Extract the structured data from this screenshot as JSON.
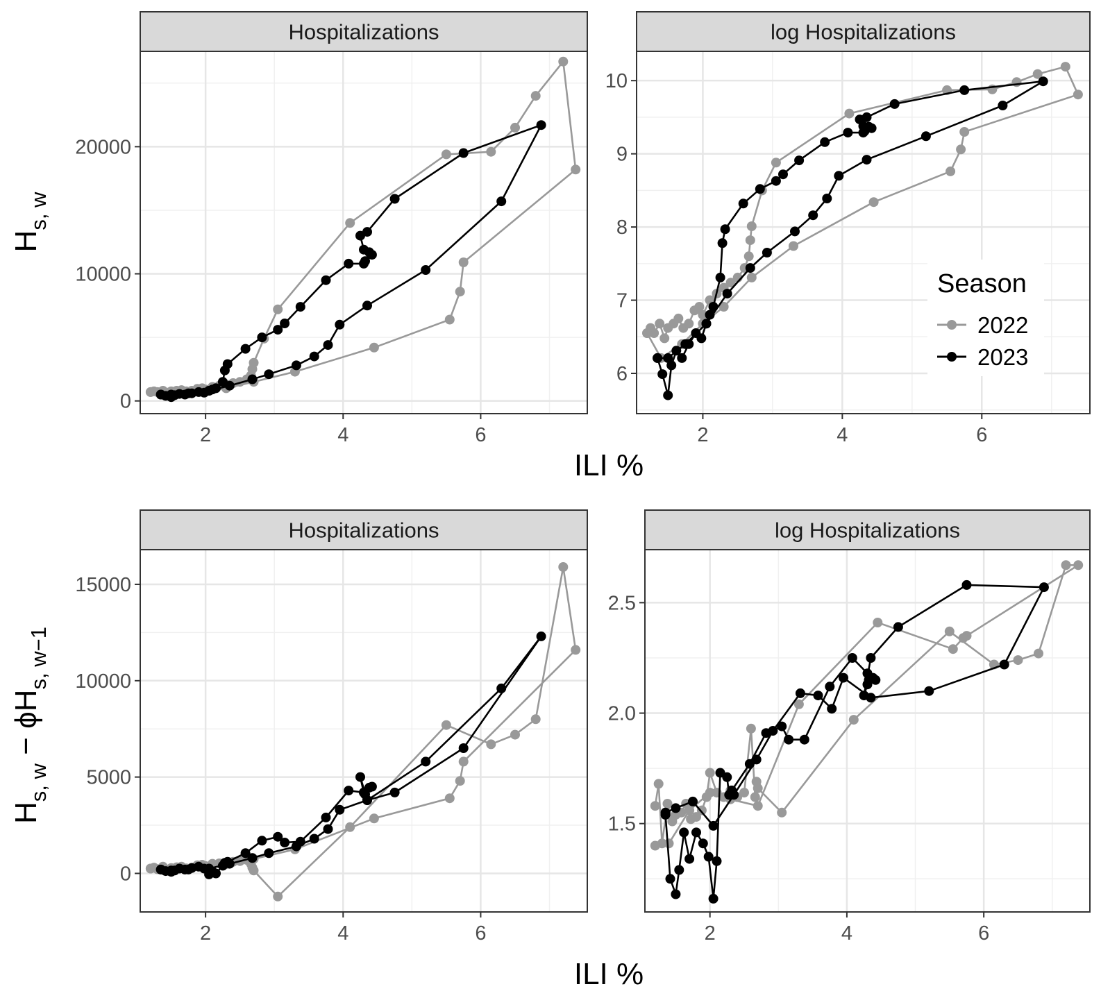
{
  "figure": {
    "x_axis_title": "ILI %",
    "top_y_axis_title": {
      "main": "H",
      "sub": "s, w"
    },
    "bottom_y_axis_title": {
      "main1": "H",
      "sub1": "s, w",
      "middle": " − ϕH",
      "sub2": "s, w−1"
    }
  },
  "legend": {
    "title": "Season",
    "entries": [
      {
        "label": "2022",
        "color": "#999999"
      },
      {
        "label": "2023",
        "color": "#000000"
      }
    ]
  },
  "chart_data": [
    {
      "type": "line",
      "panel_label": "Hospitalizations",
      "xlim": [
        1.05,
        7.55
      ],
      "ylim": [
        -1000,
        27500
      ],
      "x_ticks": [
        2,
        4,
        6
      ],
      "y_ticks": [
        0,
        10000,
        20000
      ],
      "y_tick_labels": [
        "0",
        "10000",
        "20000"
      ],
      "series": [
        {
          "name": "2022",
          "color": "#999999",
          "x": [
            1.2,
            1.25,
            1.3,
            1.38,
            1.45,
            1.5,
            1.58,
            1.65,
            1.72,
            1.8,
            1.88,
            1.95,
            2.0,
            2.1,
            2.2,
            2.3,
            2.4,
            2.5,
            2.6,
            2.66,
            2.68,
            2.7,
            2.85,
            3.05,
            4.1,
            5.5,
            6.15,
            6.5,
            6.8,
            7.2,
            7.38,
            5.75,
            5.7,
            5.55,
            4.45,
            3.3,
            2.7,
            2.3,
            2.0,
            1.7,
            1.4,
            1.2
          ],
          "y": [
            700,
            750,
            700,
            800,
            650,
            750,
            800,
            850,
            750,
            800,
            950,
            1000,
            900,
            1100,
            1200,
            1300,
            1400,
            1500,
            1700,
            2000,
            2500,
            3000,
            4900,
            7200,
            14000,
            19400,
            19600,
            21500,
            24000,
            26700,
            18200,
            10900,
            8600,
            6400,
            4200,
            2300,
            1500,
            1000,
            800,
            600,
            500,
            700
          ]
        },
        {
          "name": "2023",
          "color": "#000000",
          "x": [
            1.35,
            1.42,
            1.5,
            1.55,
            1.62,
            1.7,
            1.8,
            1.9,
            1.98,
            2.05,
            2.1,
            2.15,
            2.25,
            2.28,
            2.32,
            2.58,
            2.82,
            3.05,
            3.15,
            3.38,
            3.75,
            4.08,
            4.3,
            4.32,
            4.38,
            4.42,
            4.3,
            4.25,
            4.35,
            4.75,
            5.75,
            6.88,
            6.3,
            5.2,
            4.35,
            3.95,
            3.78,
            3.58,
            3.32,
            2.92,
            2.68,
            2.35,
            2.05,
            1.75,
            1.5,
            1.35
          ],
          "y": [
            500,
            400,
            300,
            450,
            550,
            500,
            600,
            700,
            650,
            800,
            900,
            1000,
            1500,
            2400,
            2900,
            4100,
            5000,
            5600,
            6100,
            7400,
            9500,
            10800,
            10800,
            11000,
            11700,
            11500,
            11900,
            13000,
            13300,
            15900,
            19500,
            21700,
            15700,
            10300,
            7500,
            6000,
            4400,
            3500,
            2800,
            2100,
            1700,
            1200,
            800,
            600,
            500,
            500
          ]
        }
      ]
    },
    {
      "type": "line",
      "panel_label": "log Hospitalizations",
      "xlim": [
        1.05,
        7.55
      ],
      "ylim": [
        5.45,
        10.4
      ],
      "x_ticks": [
        2,
        4,
        6
      ],
      "y_ticks": [
        6,
        7,
        8,
        9,
        10
      ],
      "y_tick_labels": [
        "6",
        "7",
        "8",
        "9",
        "10"
      ],
      "series": [
        {
          "name": "2022",
          "color": "#999999",
          "x": [
            1.2,
            1.25,
            1.3,
            1.38,
            1.45,
            1.5,
            1.58,
            1.65,
            1.72,
            1.8,
            1.88,
            1.95,
            2.0,
            2.1,
            2.2,
            2.3,
            2.4,
            2.5,
            2.6,
            2.66,
            2.68,
            2.7,
            2.85,
            3.05,
            4.1,
            5.5,
            6.15,
            6.5,
            6.8,
            7.2,
            7.38,
            5.75,
            5.7,
            5.55,
            4.45,
            3.3,
            2.7,
            2.3,
            2.0,
            1.7,
            1.4,
            1.2
          ],
          "y": [
            6.55,
            6.62,
            6.55,
            6.68,
            6.48,
            6.62,
            6.68,
            6.75,
            6.62,
            6.68,
            6.86,
            6.91,
            6.8,
            7.0,
            7.09,
            7.17,
            7.24,
            7.31,
            7.44,
            7.6,
            7.82,
            8.01,
            8.5,
            8.88,
            9.55,
            9.87,
            9.88,
            9.98,
            10.09,
            10.19,
            9.81,
            9.3,
            9.06,
            8.76,
            8.34,
            7.74,
            7.31,
            6.91,
            6.68,
            6.4,
            6.21,
            6.55
          ]
        },
        {
          "name": "2023",
          "color": "#000000",
          "x": [
            1.35,
            1.42,
            1.5,
            1.55,
            1.62,
            1.7,
            1.8,
            1.9,
            1.98,
            2.05,
            2.1,
            2.15,
            2.25,
            2.28,
            2.32,
            2.58,
            2.82,
            3.05,
            3.15,
            3.38,
            3.75,
            4.08,
            4.3,
            4.32,
            4.38,
            4.42,
            4.3,
            4.25,
            4.35,
            4.75,
            5.75,
            6.88,
            6.3,
            5.2,
            4.35,
            3.95,
            3.78,
            3.58,
            3.32,
            2.92,
            2.68,
            2.35,
            2.05,
            1.75,
            1.5,
            1.35
          ],
          "y": [
            6.21,
            5.99,
            5.7,
            6.11,
            6.31,
            6.21,
            6.4,
            6.55,
            6.48,
            6.68,
            6.8,
            6.91,
            7.31,
            7.78,
            7.97,
            8.32,
            8.52,
            8.63,
            8.72,
            8.91,
            9.16,
            9.29,
            9.29,
            9.31,
            9.37,
            9.35,
            9.38,
            9.47,
            9.5,
            9.68,
            9.87,
            9.99,
            9.66,
            9.24,
            8.92,
            8.7,
            8.39,
            8.16,
            7.94,
            7.65,
            7.44,
            7.09,
            6.68,
            6.4,
            6.21,
            6.21
          ]
        }
      ]
    },
    {
      "type": "line",
      "panel_label": "Hospitalizations",
      "xlim": [
        1.05,
        7.55
      ],
      "ylim": [
        -2000,
        16800
      ],
      "x_ticks": [
        2,
        4,
        6
      ],
      "y_ticks": [
        0,
        5000,
        10000,
        15000
      ],
      "y_tick_labels": [
        "0",
        "5000",
        "10000",
        "15000"
      ],
      "series": [
        {
          "name": "2022",
          "color": "#999999",
          "x": [
            1.2,
            1.25,
            1.3,
            1.38,
            1.45,
            1.5,
            1.58,
            1.65,
            1.72,
            1.8,
            1.88,
            1.95,
            2.0,
            2.1,
            2.2,
            2.3,
            2.4,
            2.5,
            2.6,
            2.66,
            2.68,
            2.7,
            3.05,
            4.1,
            5.5,
            6.15,
            6.5,
            6.8,
            7.2,
            7.38,
            5.75,
            5.7,
            5.55,
            4.45,
            3.3,
            2.7,
            2.3,
            2.0,
            1.7,
            1.4,
            1.2
          ],
          "y": [
            250,
            300,
            220,
            350,
            180,
            280,
            320,
            350,
            260,
            300,
            420,
            450,
            380,
            500,
            520,
            560,
            600,
            640,
            700,
            500,
            300,
            150,
            -1200,
            2400,
            7700,
            6700,
            7200,
            8000,
            15900,
            11600,
            5800,
            4800,
            3900,
            2850,
            1250,
            750,
            480,
            300,
            200,
            150,
            250
          ]
        },
        {
          "name": "2023",
          "color": "#000000",
          "x": [
            1.35,
            1.42,
            1.5,
            1.55,
            1.62,
            1.7,
            1.8,
            1.9,
            1.98,
            2.05,
            2.1,
            2.15,
            2.25,
            2.28,
            2.32,
            2.58,
            2.82,
            3.05,
            3.15,
            3.38,
            3.75,
            4.08,
            4.3,
            4.32,
            4.38,
            4.42,
            4.3,
            4.25,
            4.35,
            4.75,
            5.75,
            6.88,
            6.3,
            5.2,
            4.35,
            3.95,
            3.78,
            3.58,
            3.32,
            2.92,
            2.68,
            2.35,
            2.05,
            1.75,
            1.5,
            1.35
          ],
          "y": [
            200,
            120,
            80,
            150,
            250,
            200,
            280,
            350,
            250,
            -50,
            100,
            0,
            400,
            550,
            600,
            1050,
            1700,
            1900,
            1600,
            1650,
            2900,
            4300,
            4200,
            4100,
            4450,
            4500,
            4200,
            5000,
            3800,
            4200,
            6500,
            12300,
            9600,
            5800,
            3800,
            3300,
            2300,
            1800,
            1400,
            1050,
            800,
            500,
            250,
            200,
            150,
            200
          ]
        }
      ]
    },
    {
      "type": "line",
      "panel_label": "log Hospitalizations",
      "xlim": [
        1.05,
        7.55
      ],
      "ylim": [
        1.1,
        2.74
      ],
      "x_ticks": [
        2,
        4,
        6
      ],
      "y_ticks": [
        1.5,
        2.0,
        2.5
      ],
      "y_tick_labels": [
        "1.5",
        "2.0",
        "2.5"
      ],
      "series": [
        {
          "name": "2022",
          "color": "#999999",
          "x": [
            1.2,
            1.25,
            1.3,
            1.38,
            1.45,
            1.5,
            1.58,
            1.65,
            1.72,
            1.8,
            1.88,
            1.95,
            2.0,
            2.1,
            2.2,
            2.3,
            2.4,
            2.5,
            2.6,
            2.66,
            2.68,
            2.7,
            3.05,
            4.1,
            5.5,
            6.15,
            6.5,
            6.8,
            7.2,
            7.38,
            5.75,
            5.7,
            5.55,
            4.45,
            3.3,
            2.7,
            2.3,
            2.0,
            1.7,
            1.4,
            1.2
          ],
          "y": [
            1.58,
            1.68,
            1.41,
            1.59,
            1.51,
            1.54,
            1.55,
            1.59,
            1.52,
            1.53,
            1.56,
            1.62,
            1.73,
            1.64,
            1.62,
            1.65,
            1.62,
            1.64,
            1.93,
            1.62,
            1.69,
            1.66,
            1.55,
            1.97,
            2.37,
            2.22,
            2.24,
            2.27,
            2.67,
            2.67,
            2.35,
            2.34,
            2.29,
            2.41,
            2.04,
            1.58,
            1.61,
            1.64,
            1.56,
            1.41,
            1.4
          ]
        },
        {
          "name": "2023",
          "color": "#000000",
          "x": [
            1.35,
            1.42,
            1.5,
            1.55,
            1.62,
            1.7,
            1.8,
            1.9,
            1.98,
            2.05,
            2.1,
            2.15,
            2.25,
            2.28,
            2.32,
            2.58,
            2.82,
            3.05,
            3.15,
            3.38,
            3.75,
            4.08,
            4.3,
            4.32,
            4.38,
            4.42,
            4.3,
            4.25,
            4.35,
            4.75,
            5.75,
            6.88,
            6.3,
            5.2,
            4.35,
            3.95,
            3.78,
            3.58,
            3.32,
            2.92,
            2.68,
            2.35,
            2.05,
            1.75,
            1.5,
            1.35
          ],
          "y": [
            1.54,
            1.25,
            1.18,
            1.29,
            1.46,
            1.34,
            1.46,
            1.41,
            1.35,
            1.16,
            1.33,
            1.73,
            1.71,
            1.63,
            1.65,
            1.77,
            1.91,
            1.94,
            1.88,
            1.88,
            2.12,
            2.25,
            2.18,
            2.15,
            2.16,
            2.15,
            2.13,
            2.08,
            2.25,
            2.39,
            2.58,
            2.57,
            2.22,
            2.1,
            2.07,
            2.16,
            2.02,
            2.08,
            2.09,
            1.92,
            1.79,
            1.63,
            1.49,
            1.6,
            1.57,
            1.55
          ]
        }
      ]
    }
  ]
}
